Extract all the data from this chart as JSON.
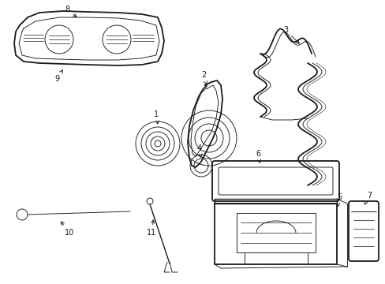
{
  "bg_color": "#ffffff",
  "line_color": "#1a1a1a",
  "lw_main": 1.0,
  "lw_thin": 0.65,
  "lw_thick": 1.3
}
